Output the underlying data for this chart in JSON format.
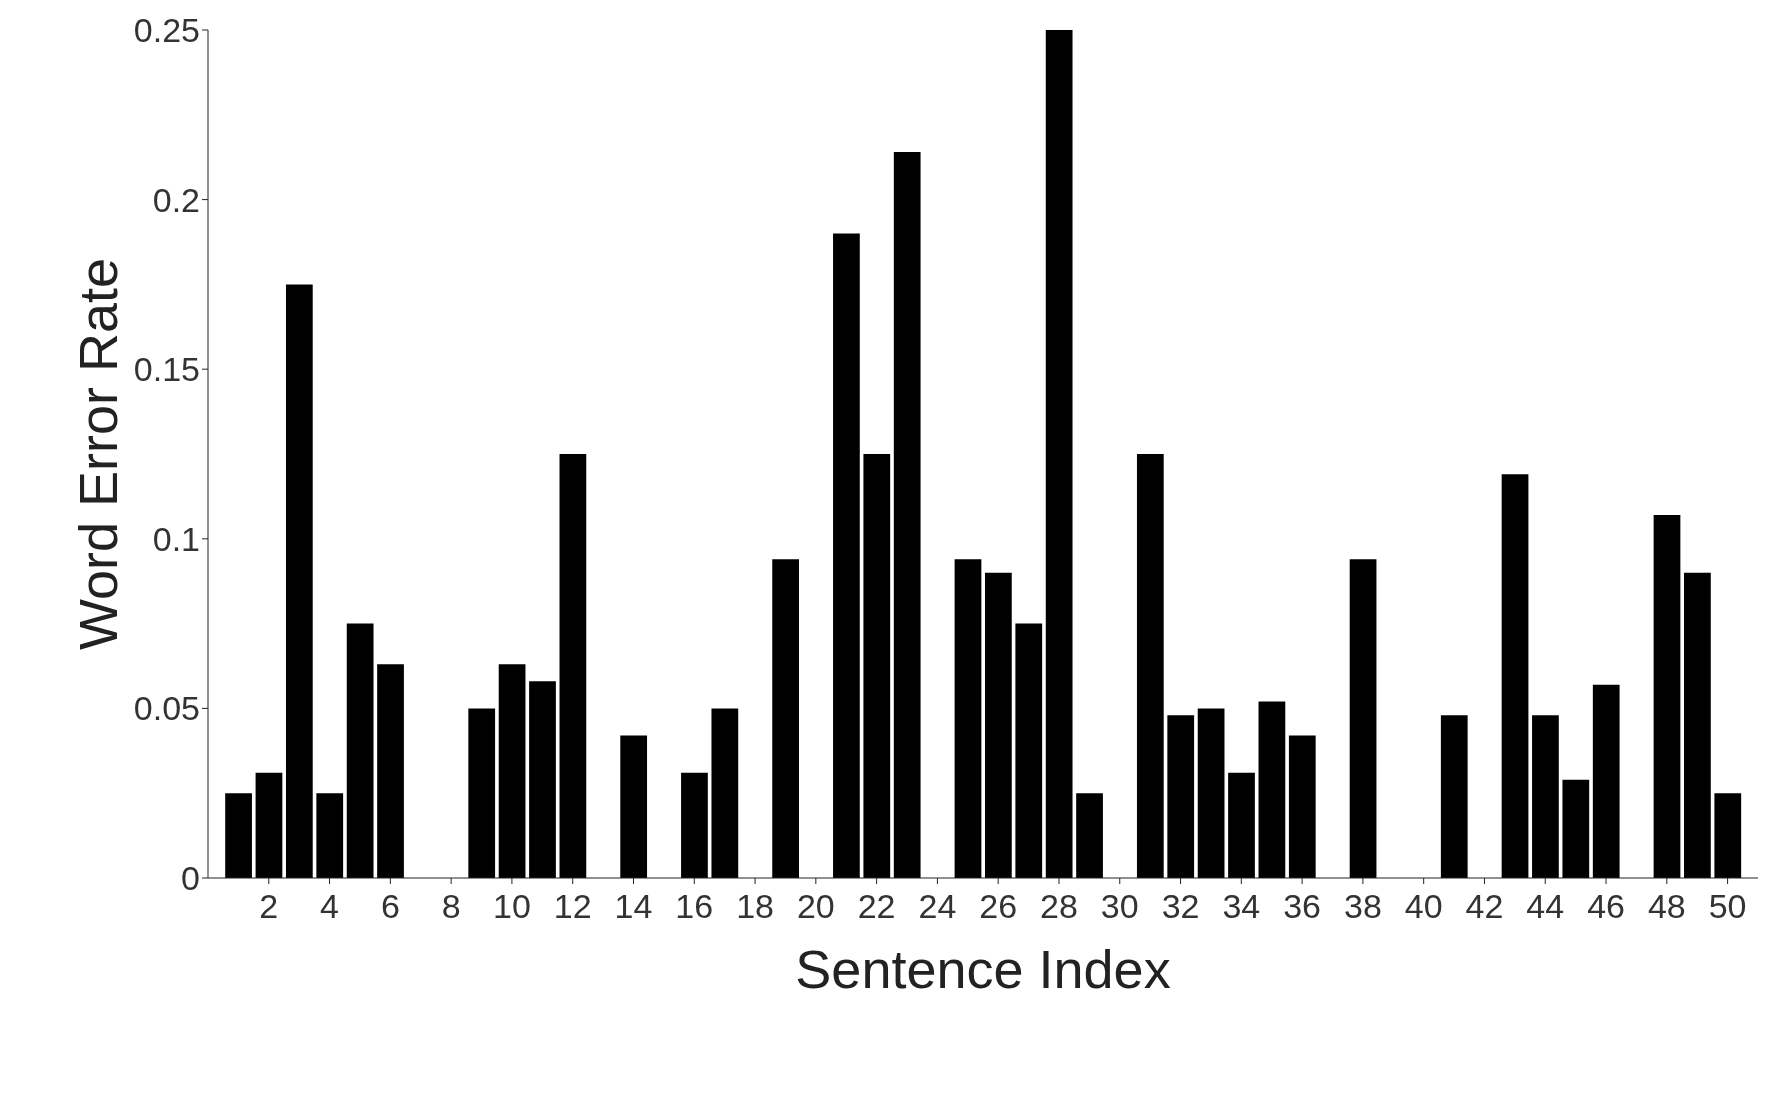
{
  "chart_data": {
    "type": "bar",
    "xlabel": "Sentence Index",
    "ylabel": "Word Error Rate",
    "x": [
      1,
      2,
      3,
      4,
      5,
      6,
      7,
      8,
      9,
      10,
      11,
      12,
      13,
      14,
      15,
      16,
      17,
      18,
      19,
      20,
      21,
      22,
      23,
      24,
      25,
      26,
      27,
      28,
      29,
      30,
      31,
      32,
      33,
      34,
      35,
      36,
      37,
      38,
      39,
      40,
      41,
      42,
      43,
      44,
      45,
      46,
      47,
      48,
      49,
      50
    ],
    "values": [
      0.025,
      0.031,
      0.175,
      0.025,
      0.075,
      0.063,
      0,
      0,
      0.05,
      0.063,
      0.058,
      0.125,
      0,
      0.042,
      0,
      0.031,
      0.05,
      0,
      0.094,
      0,
      0.19,
      0.125,
      0.214,
      0,
      0.094,
      0.09,
      0.075,
      0.25,
      0.025,
      0,
      0.125,
      0.048,
      0.05,
      0.031,
      0.052,
      0.042,
      0,
      0.094,
      0,
      0,
      0.048,
      0,
      0.119,
      0.048,
      0.029,
      0.057,
      0,
      0.107,
      0.09,
      0.025
    ],
    "color": "#000000",
    "xlim": [
      0,
      51
    ],
    "xticks": [
      2,
      4,
      6,
      8,
      10,
      12,
      14,
      16,
      18,
      20,
      22,
      24,
      26,
      28,
      30,
      32,
      34,
      36,
      38,
      40,
      42,
      44,
      46,
      48,
      50
    ],
    "ylim": [
      0,
      0.25
    ],
    "yticks": [
      0,
      0.05,
      0.1,
      0.15,
      0.2,
      0.25
    ],
    "grid": false,
    "legend": false
  }
}
